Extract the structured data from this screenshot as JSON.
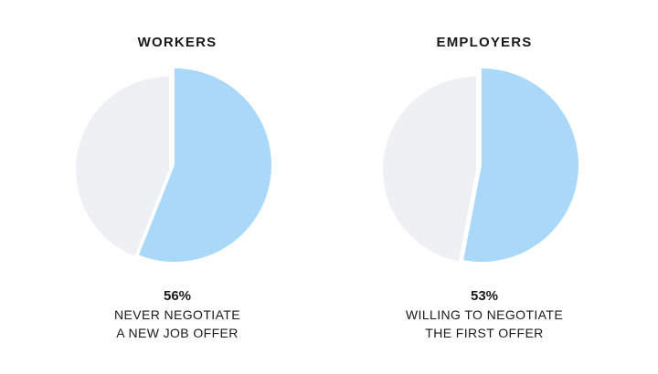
{
  "chart_data": [
    {
      "type": "pie",
      "title": "WORKERS",
      "slices": [
        {
          "label": "56%",
          "value": 56,
          "color": "#a9d8f8"
        },
        {
          "label": "",
          "value": 44,
          "color": "#eef0f4"
        }
      ],
      "value_label": "56%",
      "caption": [
        "NEVER NEGOTIATE",
        "A NEW JOB OFFER"
      ]
    },
    {
      "type": "pie",
      "title": "EMPLOYERS",
      "slices": [
        {
          "label": "53%",
          "value": 53,
          "color": "#a9d8f8"
        },
        {
          "label": "",
          "value": 47,
          "color": "#eef0f4"
        }
      ],
      "value_label": "53%",
      "caption": [
        "WILLING TO NEGOTIATE",
        "THE FIRST OFFER"
      ]
    }
  ]
}
